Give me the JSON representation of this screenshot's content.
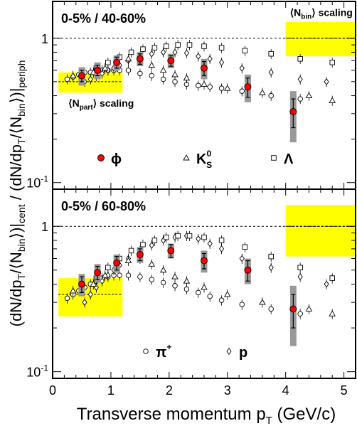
{
  "chart_data": [
    {
      "type": "scatter",
      "panel": "top",
      "title": "0-5% / 40-60%",
      "yscale": "log",
      "xlim": [
        0,
        5.2
      ],
      "ylim": [
        0.09,
        1.8
      ],
      "x_ticks": [
        0,
        1,
        2,
        3,
        4,
        5
      ],
      "y_tick_labels": [
        {
          "label": "1",
          "value": 1
        },
        {
          "label": "10",
          "sup": "-1",
          "value": 0.1
        }
      ],
      "reference_line": 1,
      "legend": [
        {
          "key": "phi",
          "label": "ϕ"
        },
        {
          "key": "k0s",
          "label": "K",
          "sup": "0",
          "sub": "S"
        },
        {
          "key": "lambda",
          "label": "Λ"
        }
      ],
      "scaling_bands": [
        {
          "label": "⟨N",
          "sub": "part",
          "label_end": "⟩ scaling",
          "x": [
            0.1,
            1.2
          ],
          "y": [
            0.42,
            0.58
          ],
          "center": 0.5
        },
        {
          "label": "⟨N",
          "sub": "bin",
          "label_end": "⟩ scaling",
          "x": [
            4.0,
            5.2
          ],
          "y": [
            0.75,
            1.3
          ],
          "center": 1.0
        }
      ],
      "series": [
        {
          "name": "phi",
          "marker": "filled-circle",
          "x": [
            0.5,
            0.77,
            1.1,
            1.5,
            2.03,
            2.6,
            3.35,
            4.13
          ],
          "y": [
            0.55,
            0.6,
            0.68,
            0.72,
            0.7,
            0.62,
            0.46,
            0.31
          ],
          "err": [
            0.05,
            0.05,
            0.06,
            0.06,
            0.06,
            0.07,
            0.07,
            0.07
          ],
          "sys": [
            0.08,
            0.08,
            0.08,
            0.08,
            0.08,
            0.1,
            0.1,
            0.12
          ]
        },
        {
          "name": "pion",
          "marker": "open-circle",
          "x": [
            0.25,
            0.35,
            0.45,
            0.55,
            0.65,
            0.75,
            0.85,
            0.95,
            1.05,
            1.15,
            1.3,
            1.5,
            1.7,
            1.9,
            2.1,
            2.3,
            2.5,
            2.7,
            2.9,
            3.25,
            3.75,
            4.25
          ],
          "y": [
            0.52,
            0.54,
            0.56,
            0.58,
            0.58,
            0.59,
            0.6,
            0.6,
            0.6,
            0.6,
            0.6,
            0.57,
            0.55,
            0.52,
            0.5,
            0.48,
            0.47,
            0.46,
            0.45,
            0.43,
            0.4,
            0.38
          ]
        },
        {
          "name": "proton",
          "marker": "open-diamond",
          "x": [
            0.55,
            0.65,
            0.75,
            0.85,
            0.95,
            1.05,
            1.15,
            1.3,
            1.5,
            1.7,
            1.9,
            2.1,
            2.3,
            2.5,
            2.7,
            2.9,
            3.25,
            3.75,
            4.25,
            4.7
          ],
          "y": [
            0.5,
            0.52,
            0.55,
            0.57,
            0.6,
            0.62,
            0.65,
            0.7,
            0.75,
            0.78,
            0.8,
            0.8,
            0.79,
            0.75,
            0.72,
            0.68,
            0.62,
            0.58,
            0.52,
            0.5
          ]
        },
        {
          "name": "k0s",
          "marker": "open-triangle",
          "x": [
            0.35,
            0.5,
            0.7,
            0.9,
            1.1,
            1.3,
            1.5,
            1.7,
            1.9,
            2.1,
            2.3,
            2.6,
            3.0,
            3.6,
            4.4,
            4.8
          ],
          "y": [
            0.55,
            0.55,
            0.58,
            0.62,
            0.68,
            0.72,
            0.7,
            0.65,
            0.6,
            0.56,
            0.53,
            0.48,
            0.45,
            0.42,
            0.4,
            0.37
          ]
        },
        {
          "name": "lambda",
          "marker": "open-square",
          "x": [
            0.75,
            0.95,
            1.15,
            1.35,
            1.55,
            1.75,
            1.95,
            2.15,
            2.35,
            2.6,
            2.9,
            3.3,
            3.75,
            4.25,
            4.8
          ],
          "y": [
            0.62,
            0.68,
            0.74,
            0.8,
            0.84,
            0.86,
            0.88,
            0.9,
            0.9,
            0.88,
            0.86,
            0.82,
            0.78,
            0.72,
            0.68
          ]
        }
      ]
    },
    {
      "type": "scatter",
      "panel": "bottom",
      "title": "0-5% / 60-80%",
      "yscale": "log",
      "xlim": [
        0,
        5.2
      ],
      "ylim": [
        0.09,
        1.8
      ],
      "x_ticks": [
        0,
        1,
        2,
        3,
        4,
        5
      ],
      "y_tick_labels": [
        {
          "label": "1",
          "value": 1
        },
        {
          "label": "10",
          "sup": "-1",
          "value": 0.1
        }
      ],
      "reference_line": 1,
      "legend": [
        {
          "key": "pion",
          "label": "π",
          "sup": "+"
        },
        {
          "key": "proton",
          "label": "p"
        }
      ],
      "scaling_bands": [
        {
          "x": [
            0.1,
            1.2
          ],
          "y": [
            0.24,
            0.44
          ],
          "center": 0.34
        },
        {
          "x": [
            4.0,
            5.2
          ],
          "y": [
            0.62,
            1.4
          ],
          "center": 1.0
        }
      ],
      "series": [
        {
          "name": "phi",
          "marker": "filled-circle",
          "x": [
            0.5,
            0.77,
            1.1,
            1.5,
            2.03,
            2.6,
            3.35,
            4.13
          ],
          "y": [
            0.4,
            0.48,
            0.56,
            0.64,
            0.68,
            0.58,
            0.5,
            0.27
          ],
          "err": [
            0.05,
            0.05,
            0.06,
            0.06,
            0.07,
            0.07,
            0.08,
            0.07
          ],
          "sys": [
            0.07,
            0.07,
            0.08,
            0.08,
            0.08,
            0.1,
            0.1,
            0.12
          ]
        },
        {
          "name": "pion",
          "marker": "open-circle",
          "x": [
            0.25,
            0.35,
            0.45,
            0.55,
            0.65,
            0.75,
            0.85,
            0.95,
            1.05,
            1.15,
            1.3,
            1.5,
            1.7,
            1.9,
            2.1,
            2.3,
            2.5,
            2.7,
            2.9,
            3.25,
            3.75,
            4.25
          ],
          "y": [
            0.32,
            0.34,
            0.36,
            0.38,
            0.4,
            0.42,
            0.44,
            0.45,
            0.46,
            0.46,
            0.46,
            0.45,
            0.43,
            0.41,
            0.39,
            0.37,
            0.35,
            0.33,
            0.31,
            0.29,
            0.27,
            0.25
          ]
        },
        {
          "name": "proton",
          "marker": "open-diamond",
          "x": [
            0.55,
            0.65,
            0.75,
            0.85,
            0.95,
            1.05,
            1.15,
            1.3,
            1.5,
            1.7,
            1.9,
            2.1,
            2.3,
            2.5,
            2.7,
            2.9,
            3.25,
            3.75,
            4.25,
            4.7
          ],
          "y": [
            0.3,
            0.34,
            0.38,
            0.42,
            0.46,
            0.5,
            0.54,
            0.6,
            0.68,
            0.74,
            0.8,
            0.84,
            0.86,
            0.82,
            0.76,
            0.7,
            0.6,
            0.52,
            0.45,
            0.4
          ]
        },
        {
          "name": "k0s",
          "marker": "open-triangle",
          "x": [
            0.35,
            0.5,
            0.7,
            0.9,
            1.1,
            1.3,
            1.5,
            1.7,
            1.9,
            2.1,
            2.3,
            2.6,
            3.0,
            3.6,
            4.4,
            4.8
          ],
          "y": [
            0.36,
            0.36,
            0.4,
            0.46,
            0.52,
            0.58,
            0.6,
            0.55,
            0.5,
            0.45,
            0.42,
            0.38,
            0.34,
            0.3,
            0.27,
            0.25
          ]
        },
        {
          "name": "lambda",
          "marker": "open-square",
          "x": [
            0.75,
            0.95,
            1.15,
            1.35,
            1.55,
            1.75,
            1.95,
            2.15,
            2.35,
            2.6,
            2.9,
            3.3,
            3.75,
            4.25,
            4.8
          ],
          "y": [
            0.44,
            0.52,
            0.6,
            0.68,
            0.75,
            0.8,
            0.84,
            0.86,
            0.86,
            0.84,
            0.8,
            0.72,
            0.62,
            0.52,
            0.44
          ]
        }
      ]
    }
  ],
  "axes": {
    "xlabel": "Transverse momentum p",
    "xlabel_sub": "T",
    "xlabel_end": " (GeV/c)",
    "ylabel_text": "(dN/dp",
    "ylabel_sub1": "T",
    "ylabel_text2": "/⟨N",
    "ylabel_sub2": "bin",
    "ylabel_text3": "⟩)|",
    "ylabel_sub3": "cent",
    "ylabel_text4": " / (dN/dp",
    "ylabel_sub4": "T",
    "ylabel_text5": "/⟨N",
    "ylabel_sub5": "bin",
    "ylabel_text6": "⟩)|",
    "ylabel_sub6": "periph"
  },
  "colors": {
    "band": "#ffff00",
    "sys": "#999999",
    "phi": "#ff0000",
    "frame": "#000000"
  }
}
